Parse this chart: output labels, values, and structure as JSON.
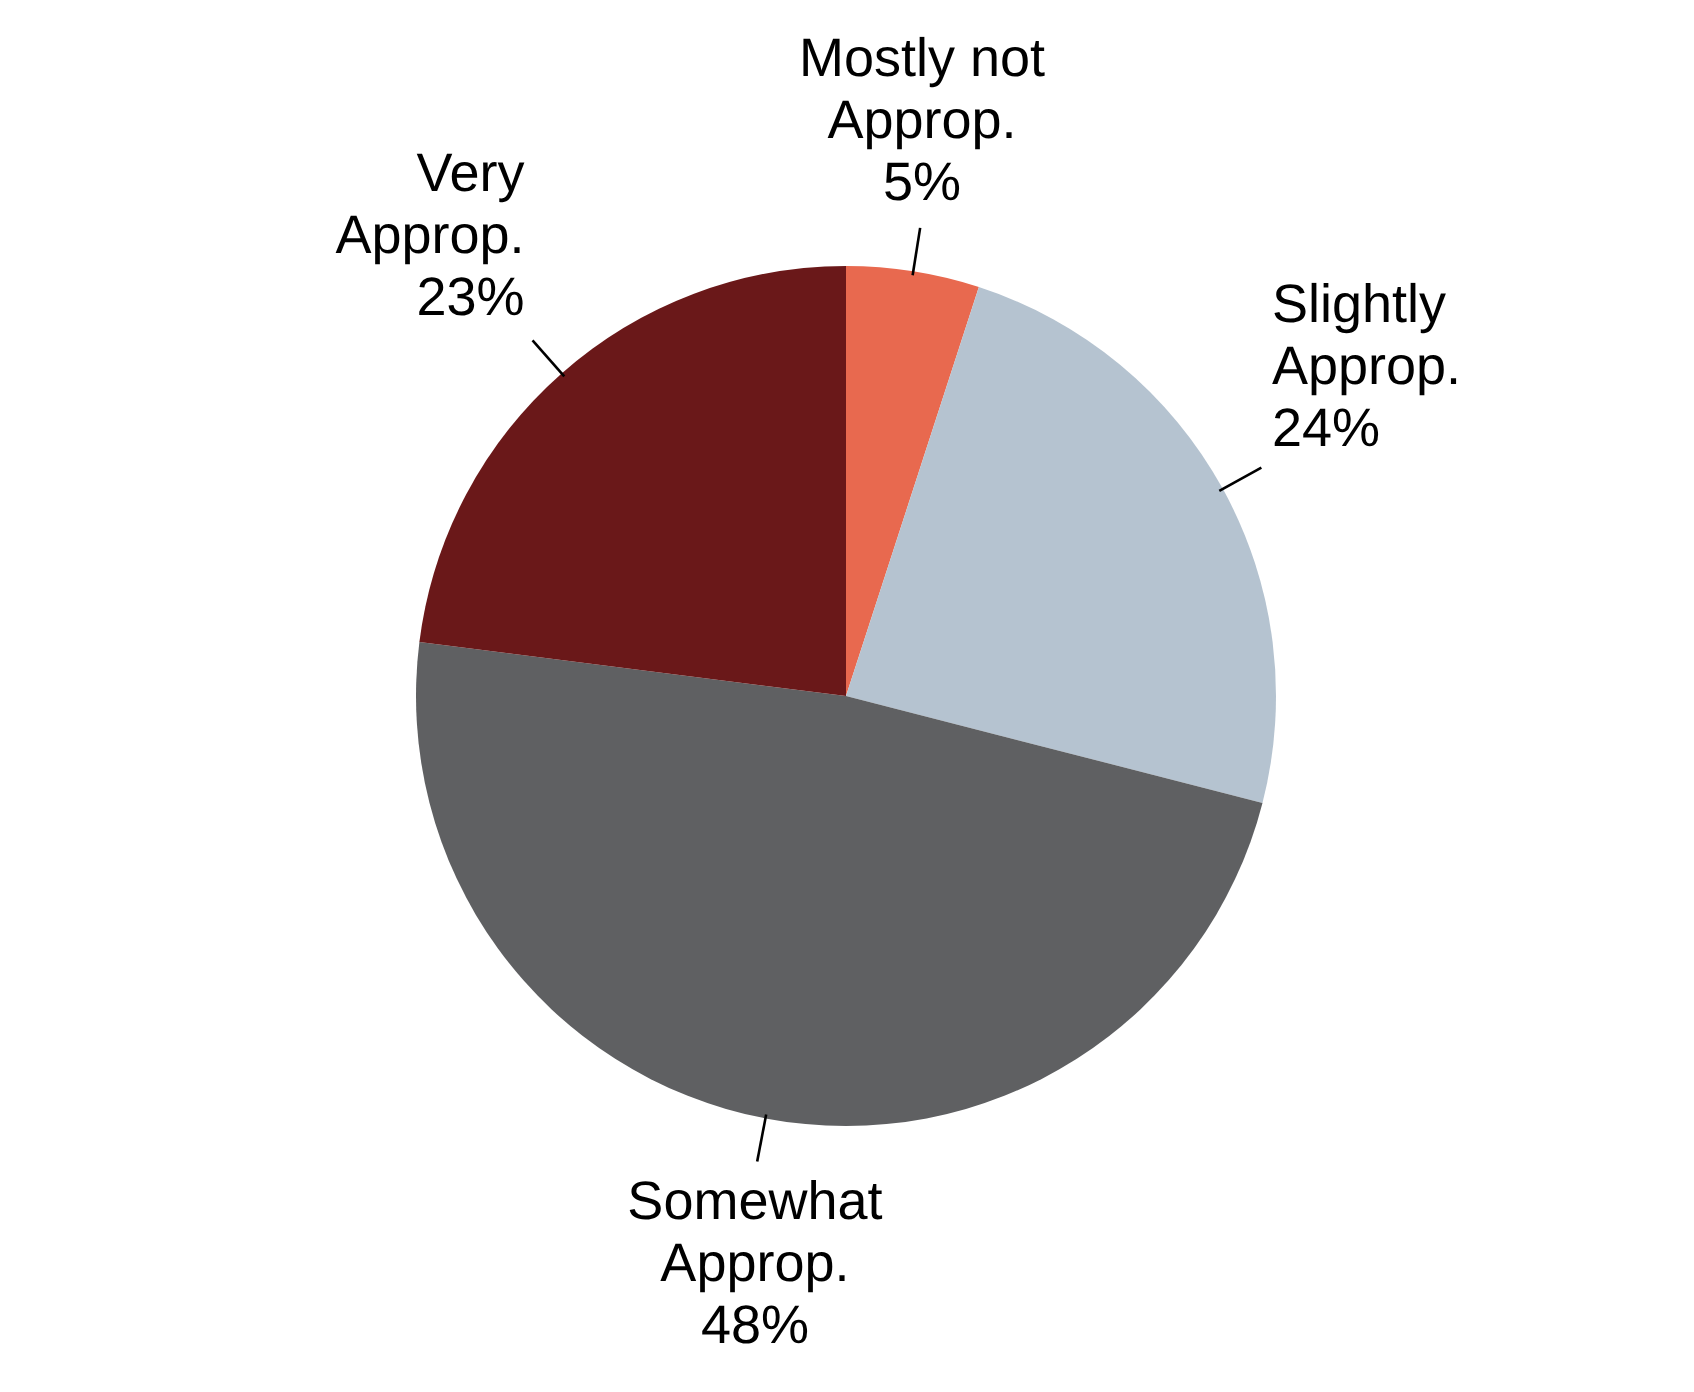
{
  "chart_data": {
    "type": "pie",
    "categories": [
      "Mostly not Approp.",
      "Slightly Approp.",
      "Somewhat Approp.",
      "Very Approp."
    ],
    "values": [
      5,
      24,
      48,
      23
    ],
    "value_labels": [
      "5%",
      "24%",
      "48%",
      "23%"
    ],
    "colors": [
      "#e8694f",
      "#b5c3d0",
      "#5f6062",
      "#6a1819"
    ],
    "legend": false
  }
}
